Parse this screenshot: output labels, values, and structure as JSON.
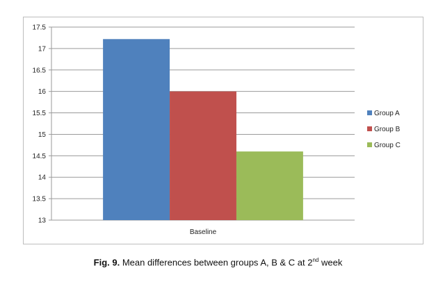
{
  "chart_data": {
    "type": "bar",
    "categories": [
      "Baseline"
    ],
    "series": [
      {
        "name": "Group A",
        "values": [
          17.22
        ],
        "color": "#4f81bd"
      },
      {
        "name": "Group B",
        "values": [
          16.0
        ],
        "color": "#c0504d"
      },
      {
        "name": "Group C",
        "values": [
          14.6
        ],
        "color": "#9bbb59"
      }
    ],
    "ylim": [
      13,
      17.5
    ],
    "yticks": [
      "13",
      "13.5",
      "14",
      "14.5",
      "15",
      "15.5",
      "16",
      "16.5",
      "17",
      "17.5"
    ],
    "grid": true,
    "legend": "right"
  },
  "caption": {
    "label": "Fig. 9.",
    "text_before": " Mean differences between groups A, B & C at 2",
    "superscript": "nd",
    "text_after": " week"
  }
}
